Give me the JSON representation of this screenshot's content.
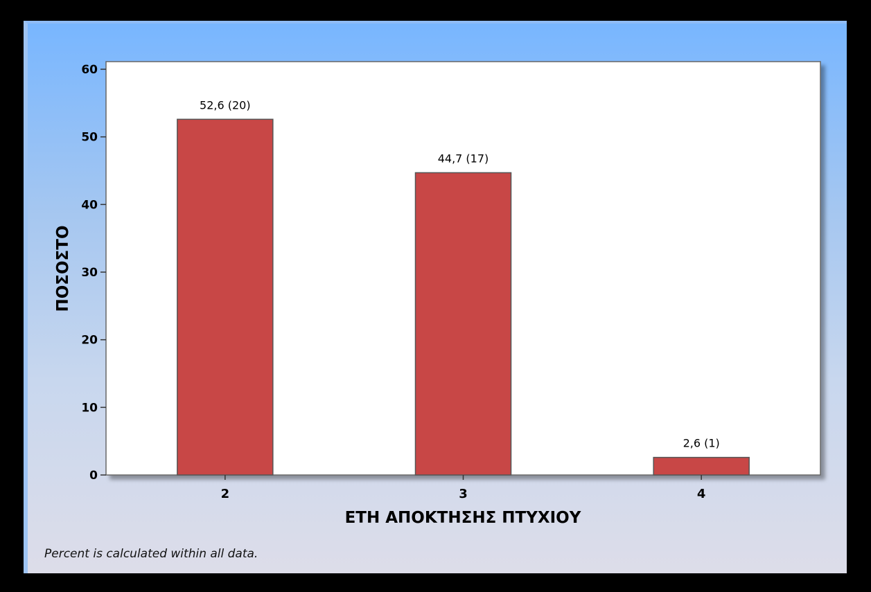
{
  "chart_data": {
    "type": "bar",
    "categories": [
      "2",
      "3",
      "4"
    ],
    "values": [
      52.6,
      44.7,
      2.6
    ],
    "data_labels": [
      "52,6 (20)",
      "44,7 (17)",
      "2,6 (1)"
    ],
    "title": "",
    "xlabel": "ΕΤΗ ΑΠΟΚΤΗΣΗΣ ΠΤΥΧΙΟΥ",
    "ylabel": "ΠΟΣΟΣΤΟ",
    "ylim": [
      0,
      60
    ],
    "yticks": [
      "0",
      "10",
      "20",
      "30",
      "40",
      "50",
      "60"
    ],
    "grid": false,
    "bar_color": "#c84746"
  },
  "footnote": "Percent is calculated within all data."
}
